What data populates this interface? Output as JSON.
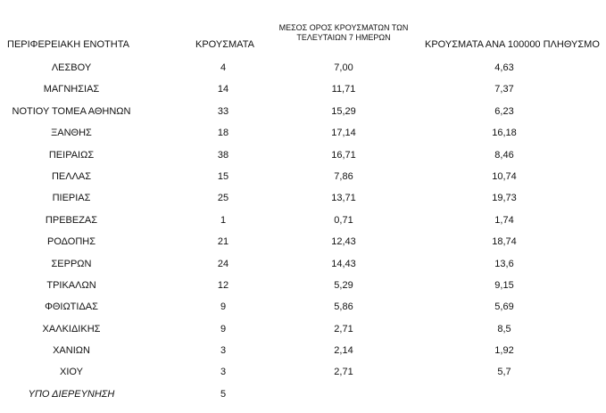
{
  "table": {
    "headers": {
      "region": "ΠΕΡΙΦΕΡΕΙΑΚΗ ΕΝΟΤΗΤΑ",
      "cases": "ΚΡΟΥΣΜΑΤΑ",
      "avg_line1": "ΜΕΣΟΣ ΟΡΟΣ ΚΡΟΥΣΜΑΤΩΝ ΤΩΝ",
      "avg_line2": "ΤΕΛΕΥΤΑΙΩΝ 7 ΗΜΕΡΩΝ",
      "per100k": "ΚΡΟΥΣΜΑΤΑ ΑΝΑ 100000 ΠΛΗΘΥΣΜΟ"
    },
    "rows": [
      {
        "region": "ΛΕΣΒΟΥ",
        "cases": "4",
        "avg7": "7,00",
        "per100k": "4,63"
      },
      {
        "region": "ΜΑΓΝΗΣΙΑΣ",
        "cases": "14",
        "avg7": "11,71",
        "per100k": "7,37"
      },
      {
        "region": "ΝΟΤΙΟΥ ΤΟΜΕΑ ΑΘΗΝΩΝ",
        "cases": "33",
        "avg7": "15,29",
        "per100k": "6,23"
      },
      {
        "region": "ΞΑΝΘΗΣ",
        "cases": "18",
        "avg7": "17,14",
        "per100k": "16,18"
      },
      {
        "region": "ΠΕΙΡΑΙΩΣ",
        "cases": "38",
        "avg7": "16,71",
        "per100k": "8,46"
      },
      {
        "region": "ΠΕΛΛΑΣ",
        "cases": "15",
        "avg7": "7,86",
        "per100k": "10,74"
      },
      {
        "region": "ΠΙΕΡΙΑΣ",
        "cases": "25",
        "avg7": "13,71",
        "per100k": "19,73"
      },
      {
        "region": "ΠΡΕΒΕΖΑΣ",
        "cases": "1",
        "avg7": "0,71",
        "per100k": "1,74"
      },
      {
        "region": "ΡΟΔΟΠΗΣ",
        "cases": "21",
        "avg7": "12,43",
        "per100k": "18,74"
      },
      {
        "region": "ΣΕΡΡΩΝ",
        "cases": "24",
        "avg7": "14,43",
        "per100k": "13,6"
      },
      {
        "region": "ΤΡΙΚΑΛΩΝ",
        "cases": "12",
        "avg7": "5,29",
        "per100k": "9,15"
      },
      {
        "region": "ΦΘΙΩΤΙΔΑΣ",
        "cases": "9",
        "avg7": "5,86",
        "per100k": "5,69"
      },
      {
        "region": "ΧΑΛΚΙΔΙΚΗΣ",
        "cases": "9",
        "avg7": "2,71",
        "per100k": "8,5"
      },
      {
        "region": "ΧΑΝΙΩΝ",
        "cases": "3",
        "avg7": "2,14",
        "per100k": "1,92"
      },
      {
        "region": "ΧΙΟΥ",
        "cases": "3",
        "avg7": "2,71",
        "per100k": "5,7"
      }
    ],
    "note_row": {
      "region": "ΥΠΟ ΔΙΕΡΕΥΝΗΣΗ",
      "cases": "5"
    }
  }
}
